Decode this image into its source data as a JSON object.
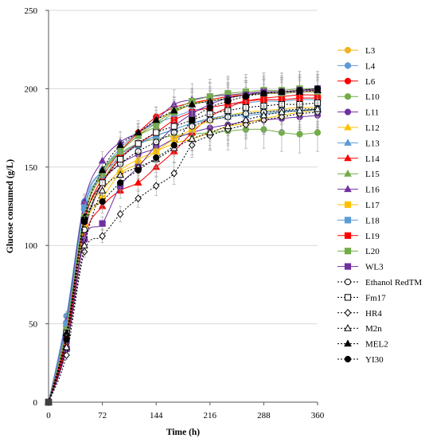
{
  "chart_data": {
    "type": "line",
    "title": "",
    "xlabel": "Time (h)",
    "ylabel": "Glucose consumed (g/L)",
    "xlim": [
      0,
      360
    ],
    "ylim": [
      0,
      250
    ],
    "xticks": [
      0,
      72,
      144,
      216,
      288,
      360
    ],
    "yticks": [
      0,
      50,
      100,
      150,
      200,
      250
    ],
    "grid": "horizontal",
    "legend_position": "right",
    "x": [
      0,
      24,
      48,
      72,
      96,
      120,
      144,
      168,
      192,
      216,
      240,
      264,
      288,
      312,
      336,
      360
    ],
    "series": [
      {
        "name": "L3",
        "color": "#F2B21B",
        "marker": "circle",
        "filled": true,
        "line": "solid",
        "values": [
          0,
          42,
          118,
          145,
          160,
          170,
          180,
          185,
          190,
          193,
          195,
          197,
          198,
          198,
          199,
          199
        ]
      },
      {
        "name": "L4",
        "color": "#5B9BD5",
        "marker": "circle",
        "filled": true,
        "line": "solid",
        "values": [
          0,
          55,
          128,
          148,
          162,
          172,
          178,
          182,
          186,
          188,
          190,
          191,
          192,
          192,
          193,
          193
        ]
      },
      {
        "name": "L6",
        "color": "#FF0000",
        "marker": "circle",
        "filled": true,
        "line": "solid",
        "values": [
          0,
          40,
          115,
          143,
          160,
          172,
          182,
          188,
          191,
          193,
          195,
          196,
          197,
          197,
          198,
          198
        ]
      },
      {
        "name": "L10",
        "color": "#70AD47",
        "marker": "circle",
        "filled": true,
        "line": "solid",
        "values": [
          0,
          44,
          112,
          140,
          158,
          165,
          168,
          170,
          171,
          172,
          173,
          174,
          174,
          172,
          171,
          172
        ]
      },
      {
        "name": "L11",
        "color": "#7030A0",
        "marker": "circle",
        "filled": true,
        "line": "solid",
        "values": [
          0,
          38,
          108,
          140,
          152,
          158,
          162,
          168,
          172,
          175,
          177,
          179,
          180,
          181,
          182,
          183
        ]
      },
      {
        "name": "L12",
        "color": "#FFC000",
        "marker": "triangle",
        "filled": true,
        "line": "solid",
        "values": [
          0,
          45,
          118,
          135,
          148,
          155,
          160,
          165,
          168,
          172,
          176,
          178,
          181,
          183,
          185,
          186
        ]
      },
      {
        "name": "L13",
        "color": "#5B9BD5",
        "marker": "triangle",
        "filled": true,
        "line": "solid",
        "values": [
          0,
          50,
          125,
          148,
          158,
          165,
          170,
          174,
          178,
          180,
          182,
          183,
          184,
          185,
          186,
          186
        ]
      },
      {
        "name": "L14",
        "color": "#FF0000",
        "marker": "triangle",
        "filled": true,
        "line": "solid",
        "values": [
          0,
          36,
          105,
          125,
          135,
          140,
          150,
          160,
          172,
          182,
          188,
          192,
          194,
          195,
          196,
          196
        ]
      },
      {
        "name": "L15",
        "color": "#70AD47",
        "marker": "triangle",
        "filled": true,
        "line": "solid",
        "values": [
          0,
          48,
          120,
          148,
          160,
          170,
          176,
          185,
          190,
          192,
          194,
          196,
          197,
          197,
          198,
          198
        ]
      },
      {
        "name": "L16",
        "color": "#7030A0",
        "marker": "triangle",
        "filled": true,
        "line": "solid",
        "values": [
          0,
          52,
          128,
          154,
          166,
          172,
          180,
          190,
          193,
          195,
          196,
          197,
          198,
          198,
          199,
          199
        ]
      },
      {
        "name": "L17",
        "color": "#FFC000",
        "marker": "square",
        "filled": true,
        "line": "solid",
        "values": [
          0,
          46,
          112,
          130,
          146,
          152,
          160,
          168,
          174,
          180,
          183,
          185,
          186,
          187,
          188,
          188
        ]
      },
      {
        "name": "L18",
        "color": "#5B9BD5",
        "marker": "square",
        "filled": true,
        "line": "solid",
        "values": [
          0,
          50,
          124,
          145,
          156,
          164,
          170,
          174,
          178,
          181,
          183,
          184,
          185,
          186,
          186,
          187
        ]
      },
      {
        "name": "L19",
        "color": "#FF0000",
        "marker": "square",
        "filled": true,
        "line": "solid",
        "values": [
          0,
          42,
          116,
          140,
          156,
          165,
          172,
          180,
          185,
          188,
          190,
          192,
          193,
          193,
          194,
          194
        ]
      },
      {
        "name": "L20",
        "color": "#70AD47",
        "marker": "square",
        "filled": true,
        "line": "solid",
        "values": [
          0,
          46,
          118,
          146,
          160,
          170,
          178,
          186,
          192,
          195,
          197,
          198,
          199,
          199,
          200,
          200
        ]
      },
      {
        "name": "WL3",
        "color": "#7030A0",
        "marker": "square",
        "filled": true,
        "line": "solid",
        "values": [
          0,
          34,
          104,
          114,
          138,
          150,
          164,
          176,
          184,
          190,
          194,
          196,
          198,
          198,
          199,
          200
        ]
      },
      {
        "name": "Ethanol RedTM",
        "color": "#000000",
        "marker": "circle",
        "filled": false,
        "line": "dotted",
        "values": [
          0,
          40,
          110,
          140,
          152,
          160,
          166,
          172,
          176,
          180,
          182,
          184,
          185,
          186,
          187,
          187
        ]
      },
      {
        "name": "Fm17",
        "color": "#000000",
        "marker": "square",
        "filled": false,
        "line": "dotted",
        "values": [
          0,
          44,
          116,
          140,
          155,
          165,
          172,
          176,
          180,
          184,
          186,
          188,
          189,
          190,
          190,
          191
        ]
      },
      {
        "name": "HR4",
        "color": "#000000",
        "marker": "diamond",
        "filled": false,
        "line": "dotted",
        "values": [
          0,
          30,
          96,
          106,
          120,
          130,
          138,
          146,
          164,
          170,
          174,
          177,
          180,
          182,
          184,
          185
        ]
      },
      {
        "name": "M2n",
        "color": "#000000",
        "marker": "triangle",
        "filled": false,
        "line": "dotted",
        "values": [
          0,
          35,
          100,
          135,
          145,
          150,
          155,
          162,
          168,
          172,
          176,
          180,
          183,
          185,
          186,
          187
        ]
      },
      {
        "name": "MEL2",
        "color": "#000000",
        "marker": "triangle",
        "filled": true,
        "line": "dotted",
        "values": [
          0,
          44,
          118,
          148,
          164,
          172,
          180,
          186,
          190,
          192,
          194,
          196,
          197,
          198,
          198,
          199
        ]
      },
      {
        "name": "YI30",
        "color": "#000000",
        "marker": "circle",
        "filled": true,
        "line": "dotted",
        "values": [
          0,
          40,
          115,
          128,
          140,
          148,
          156,
          164,
          180,
          188,
          192,
          195,
          197,
          198,
          199,
          200
        ]
      }
    ]
  }
}
